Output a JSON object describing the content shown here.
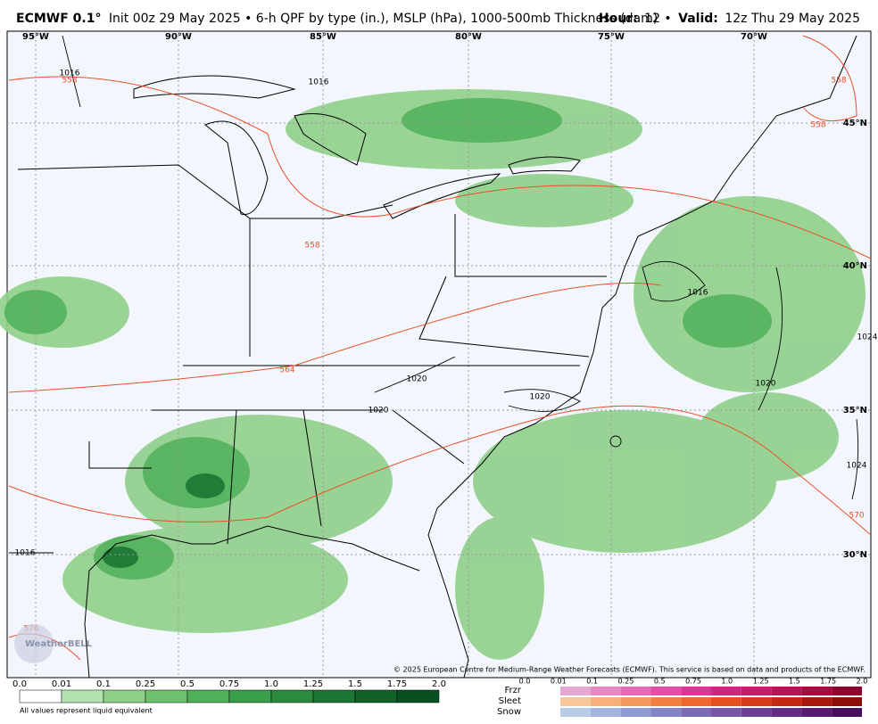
{
  "header": {
    "model": "ECMWF 0.1°",
    "description": "Init 00z 29 May 2025 • 6-h QPF by type (in.), MSLP (hPa), 1000-500mb Thickness (dam)",
    "hour_label": "Hour:",
    "hour": "12 •",
    "valid_label": "Valid:",
    "valid": "12z Thu 29 May 2025"
  },
  "map": {
    "lon_labels": [
      "95°W",
      "90°W",
      "85°W",
      "80°W",
      "75°W",
      "70°W"
    ],
    "lat_labels": [
      "45°N",
      "40°N",
      "35°N",
      "30°N"
    ],
    "contour_labels": [
      "1016",
      "558",
      "1016",
      "558",
      "564",
      "1020",
      "1020",
      "1020",
      "558",
      "558",
      "1016",
      "1024",
      "1020",
      "1024",
      "570",
      "1016",
      "576"
    ],
    "watermark": "WeatherBELL",
    "credit": "© 2025 European Centre for Medium-Range Weather Forecasts (ECMWF). This service is based on data and products of the ECMWF."
  },
  "qpf_legend": {
    "ticks": [
      "0.0",
      "0.01",
      "0.1",
      "0.25",
      "0.5",
      "0.75",
      "1.0",
      "1.25",
      "1.5",
      "1.75",
      "2.0"
    ],
    "colors": [
      "#ffffff",
      "#b5e3b0",
      "#8fd08a",
      "#6cc26c",
      "#4fb05a",
      "#3a9f4c",
      "#2a8a3e",
      "#1c7633",
      "#106229",
      "#07501f"
    ],
    "note": "All values represent liquid equivalent"
  },
  "ptype_legend": {
    "ticks": [
      "0.0",
      "0.01",
      "0.1",
      "0.25",
      "0.5",
      "0.75",
      "1.0",
      "1.25",
      "1.5",
      "1.75",
      "2.0"
    ],
    "rows": [
      {
        "name": "Frzr",
        "colors": [
          "#e6a8d3",
          "#e58ac4",
          "#e36bb5",
          "#e24fa6",
          "#df3596",
          "#d92280",
          "#cf176b",
          "#c00f55",
          "#a80a40",
          "#8c0630"
        ]
      },
      {
        "name": "Sleet",
        "colors": [
          "#f7c79a",
          "#f6b07a",
          "#f4985c",
          "#f28041",
          "#ee682d",
          "#e55020",
          "#d63a18",
          "#c22812",
          "#a9190d",
          "#8e0f0a"
        ]
      },
      {
        "name": "Snow",
        "colors": [
          "#b8cce8",
          "#a3b4de",
          "#8f9cd3",
          "#8484c6",
          "#7c6cb8",
          "#7655a8",
          "#6e3f98",
          "#632b86",
          "#561a72",
          "#470e5e"
        ]
      }
    ]
  }
}
